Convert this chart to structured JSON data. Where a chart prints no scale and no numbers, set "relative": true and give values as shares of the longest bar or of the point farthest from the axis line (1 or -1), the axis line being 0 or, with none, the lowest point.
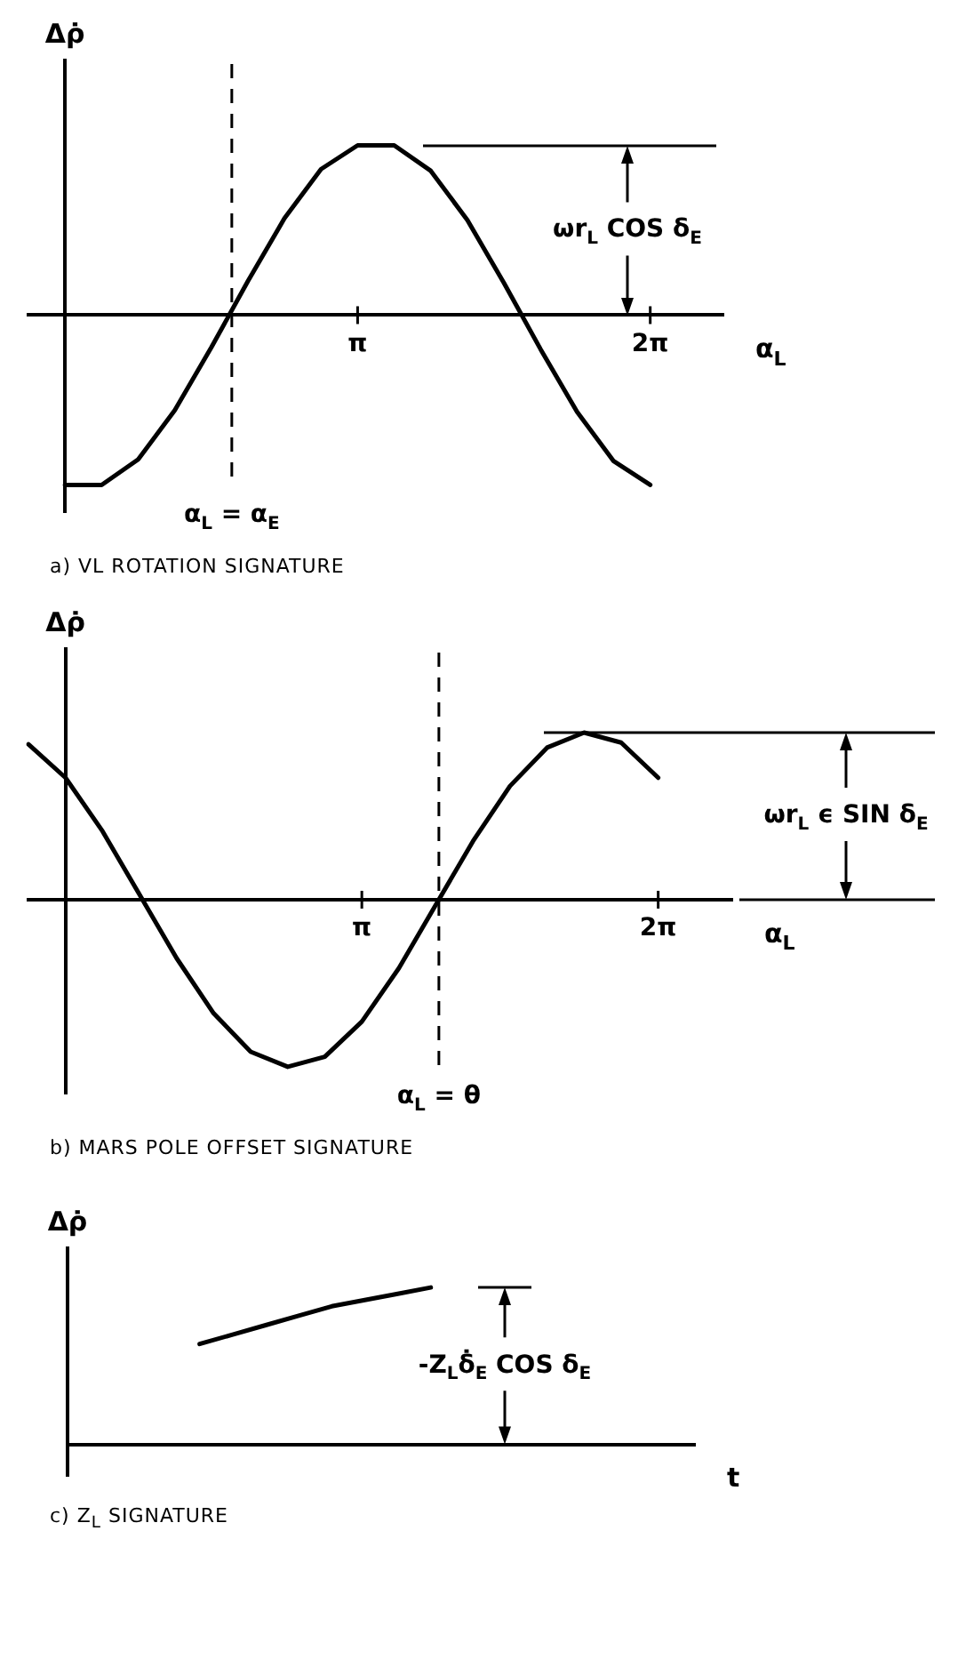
{
  "chart_data": [
    {
      "type": "line",
      "title": "a) VL ROTATION SIGNATURE",
      "xlabel": "α$_{L}$",
      "ylabel": "Δρ̇",
      "relative": true,
      "tick_labels": "x",
      "marker": "none",
      "categories": [
        null,
        null,
        null,
        null,
        null,
        null,
        null,
        null,
        null,
        "π",
        null,
        null,
        null,
        null,
        null,
        null,
        null,
        "2π",
        null,
        null
      ],
      "series": [
        {
          "color": "#000000",
          "values": [
            null,
            -1,
            -1,
            -0.85,
            -0.56,
            -0.19,
            0.2,
            0.57,
            0.86,
            1,
            1,
            0.85,
            0.56,
            0.19,
            -0.2,
            -0.57,
            -0.86,
            -1,
            null,
            null
          ]
        }
      ],
      "annotations": [
        "ωr$_{L}$ COS δ$_{E}$",
        "α$_{L}$ = α$_{E}$"
      ]
    },
    {
      "type": "line",
      "title": "b) MARS POLE OFFSET SIGNATURE",
      "xlabel": "α$_{L}$",
      "ylabel": "Δρ̇",
      "relative": true,
      "tick_labels": "x",
      "marker": "none",
      "categories": [
        null,
        null,
        null,
        null,
        null,
        null,
        null,
        null,
        null,
        "π",
        null,
        null,
        null,
        null,
        null,
        null,
        null,
        "2π",
        null,
        null
      ],
      "series": [
        {
          "color": "#000000",
          "values": [
            0.93,
            0.73,
            0.41,
            0.03,
            -0.35,
            -0.68,
            -0.91,
            -1,
            -0.94,
            -0.73,
            -0.41,
            -0.03,
            0.35,
            0.68,
            0.91,
            1,
            0.94,
            0.73,
            null,
            null
          ]
        }
      ],
      "annotations": [
        "ωr$_{L}$ ϵ SIN δ$_{E}$",
        "α$_{L}$ = θ"
      ]
    },
    {
      "type": "line",
      "title": "c) Z$_{L}$ SIGNATURE",
      "xlabel": "t",
      "ylabel": "Δρ̇",
      "relative": true,
      "tick_labels": false,
      "marker": "none",
      "categories": [
        null,
        null,
        null,
        null,
        null,
        null,
        null,
        null,
        null,
        null,
        null,
        null,
        null,
        null,
        null,
        null,
        null,
        null,
        null,
        null
      ],
      "series": [
        {
          "color": "#000000",
          "values": [
            null,
            null,
            null,
            null,
            0.64,
            0.7,
            0.76,
            0.82,
            0.88,
            0.92,
            0.96,
            1.0,
            null,
            null,
            null,
            null,
            null,
            null,
            null,
            null
          ]
        }
      ],
      "annotations": [
        "-Z$_{L}$δ̇$_{E}$ COS δ$_{E}$"
      ]
    }
  ]
}
